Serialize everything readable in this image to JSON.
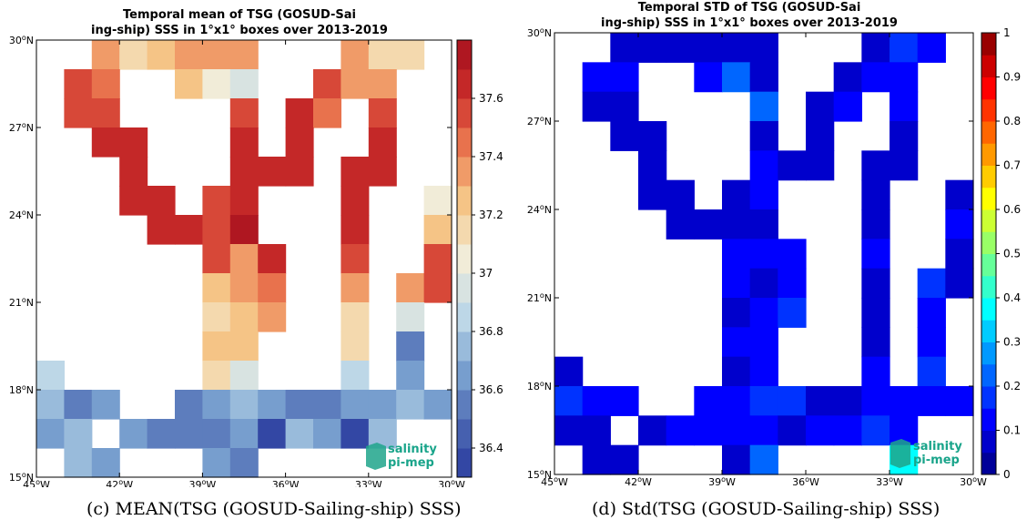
{
  "panels": [
    {
      "title_line1": "Temporal mean of TSG (GOSUD-Sai",
      "title_line2": "ing-ship) SSS in 1°x1° boxes over 2013-2019",
      "caption": "(c) MEAN(TSG (GOSUD-Sailing-ship) SSS)",
      "logo_line1": "salinity",
      "logo_line2": "pi-mep"
    },
    {
      "title_line1": "Temporal STD of TSG (GOSUD-Sai",
      "title_line2": "ing-ship) SSS in 1°x1° boxes over 2013-2019",
      "caption": "(d) Std(TSG (GOSUD-Sailing-ship) SSS)",
      "logo_line1": "salinity",
      "logo_line2": "pi-mep"
    }
  ],
  "chart_data": [
    {
      "type": "heatmap",
      "title": "Temporal mean of TSG (GOSUD-Sailing-ship) SSS in 1°x1° boxes over 2013-2019",
      "x_ticks": [
        "45°W",
        "42°W",
        "39°W",
        "36°W",
        "33°W",
        "30°W"
      ],
      "y_ticks": [
        "15°N",
        "18°N",
        "21°N",
        "24°N",
        "27°N",
        "30°N"
      ],
      "lon_range": [
        -45,
        -30
      ],
      "lat_range": [
        15,
        30
      ],
      "cell_size_deg": 1,
      "colorbar_range": [
        36.3,
        37.8
      ],
      "colorbar_ticks": [
        "36.4",
        "36.6",
        "36.8",
        "37",
        "37.2",
        "37.4",
        "37.6"
      ],
      "colorbar_levels": 15,
      "colormap_stops": [
        "#2a3b9e",
        "#4d69b3",
        "#7ea6d2",
        "#c2dbe9",
        "#f1ecd8",
        "#f6c98a",
        "#ec7d52",
        "#cc2e2b",
        "#a50f1d"
      ],
      "grid_nodata": null,
      "rows_north_to_south": [
        [
          null,
          null,
          37.3,
          37.15,
          37.25,
          37.3,
          37.3,
          37.3,
          null,
          null,
          null,
          37.3,
          37.18,
          37.18,
          null
        ],
        [
          null,
          37.5,
          37.4,
          null,
          null,
          37.2,
          37.05,
          36.98,
          null,
          null,
          37.5,
          37.35,
          37.3,
          null,
          null
        ],
        [
          null,
          37.55,
          37.5,
          null,
          null,
          null,
          null,
          37.55,
          null,
          37.6,
          37.4,
          null,
          37.5,
          null,
          null
        ],
        [
          null,
          null,
          37.6,
          37.6,
          null,
          null,
          null,
          37.65,
          null,
          37.6,
          null,
          null,
          37.6,
          null,
          null
        ],
        [
          null,
          null,
          null,
          37.6,
          null,
          null,
          null,
          37.6,
          37.6,
          37.6,
          null,
          37.6,
          37.6,
          null,
          null
        ],
        [
          null,
          null,
          null,
          37.65,
          37.65,
          null,
          37.55,
          37.6,
          null,
          null,
          null,
          37.6,
          null,
          null,
          37.08
        ],
        [
          null,
          null,
          null,
          null,
          37.6,
          37.6,
          37.55,
          37.75,
          null,
          null,
          null,
          37.6,
          null,
          null,
          37.25
        ],
        [
          null,
          null,
          null,
          null,
          null,
          null,
          37.5,
          37.35,
          37.65,
          null,
          null,
          37.55,
          null,
          null,
          37.55
        ],
        [
          null,
          null,
          null,
          null,
          null,
          null,
          37.25,
          37.35,
          37.45,
          null,
          null,
          37.35,
          null,
          37.35,
          37.5
        ],
        [
          null,
          null,
          null,
          null,
          null,
          null,
          37.15,
          37.25,
          37.35,
          null,
          null,
          37.15,
          null,
          36.95,
          null
        ],
        [
          null,
          null,
          null,
          null,
          null,
          null,
          37.22,
          37.22,
          null,
          null,
          null,
          37.15,
          null,
          36.55,
          null
        ],
        [
          36.85,
          null,
          null,
          null,
          null,
          null,
          37.1,
          36.98,
          null,
          null,
          null,
          36.88,
          null,
          36.6,
          null
        ],
        [
          36.7,
          36.55,
          36.65,
          null,
          null,
          36.55,
          36.65,
          36.75,
          36.6,
          36.5,
          36.5,
          36.6,
          36.65,
          36.7,
          36.65
        ],
        [
          36.65,
          36.7,
          null,
          36.65,
          36.55,
          36.5,
          36.55,
          36.6,
          36.35,
          36.75,
          36.6,
          36.35,
          36.7,
          null,
          null
        ],
        [
          null,
          36.75,
          36.6,
          null,
          null,
          null,
          36.6,
          36.55,
          null,
          null,
          null,
          null,
          null,
          null,
          null
        ]
      ]
    },
    {
      "type": "heatmap",
      "title": "Temporal STD of TSG (GOSUD-Sailing-ship) SSS in 1°x1° boxes over 2013-2019",
      "x_ticks": [
        "45°W",
        "42°W",
        "39°W",
        "36°W",
        "33°W",
        "30°W"
      ],
      "y_ticks": [
        "15°N",
        "18°N",
        "21°N",
        "24°N",
        "27°N",
        "30°N"
      ],
      "lon_range": [
        -45,
        -30
      ],
      "lat_range": [
        15,
        30
      ],
      "cell_size_deg": 1,
      "colorbar_range": [
        0,
        1
      ],
      "colorbar_ticks": [
        "0",
        "0.1",
        "0.2",
        "0.3",
        "0.4",
        "0.5",
        "0.6",
        "0.7",
        "0.8",
        "0.9",
        "1"
      ],
      "colorbar_levels": 20,
      "colormap": "jet",
      "rows_north_to_south": [
        [
          null,
          null,
          0.08,
          0.08,
          0.05,
          0.05,
          0.08,
          0.05,
          null,
          null,
          null,
          0.08,
          0.18,
          0.12,
          null
        ],
        [
          null,
          0.1,
          0.1,
          null,
          null,
          0.1,
          0.2,
          0.05,
          null,
          null,
          0.05,
          0.1,
          0.1,
          null,
          null
        ],
        [
          null,
          0.05,
          0.05,
          null,
          null,
          null,
          null,
          0.2,
          null,
          0.05,
          0.1,
          null,
          0.1,
          null,
          null
        ],
        [
          null,
          null,
          0.05,
          0.05,
          null,
          null,
          null,
          0.05,
          null,
          0.05,
          null,
          null,
          0.05,
          null,
          null
        ],
        [
          null,
          null,
          null,
          0.05,
          null,
          null,
          null,
          0.1,
          0.05,
          0.05,
          null,
          0.05,
          0.05,
          null,
          null
        ],
        [
          null,
          null,
          null,
          0.05,
          0.05,
          null,
          0.05,
          0.1,
          null,
          null,
          null,
          0.05,
          null,
          null,
          0.05
        ],
        [
          null,
          null,
          null,
          null,
          0.05,
          0.05,
          0.05,
          0.05,
          null,
          null,
          null,
          0.05,
          null,
          null,
          0.1
        ],
        [
          null,
          null,
          null,
          null,
          null,
          null,
          0.1,
          0.1,
          0.1,
          null,
          null,
          0.1,
          null,
          null,
          0.05
        ],
        [
          null,
          null,
          null,
          null,
          null,
          null,
          0.1,
          0.05,
          0.1,
          null,
          null,
          0.05,
          null,
          0.15,
          0.05
        ],
        [
          null,
          null,
          null,
          null,
          null,
          null,
          0.05,
          0.1,
          0.15,
          null,
          null,
          0.05,
          null,
          0.1,
          null
        ],
        [
          null,
          null,
          null,
          null,
          null,
          null,
          0.1,
          0.1,
          null,
          null,
          null,
          0.05,
          null,
          0.1,
          null
        ],
        [
          0.05,
          null,
          null,
          null,
          null,
          null,
          0.05,
          0.1,
          null,
          null,
          null,
          0.12,
          null,
          0.18,
          null
        ],
        [
          0.18,
          0.12,
          0.1,
          null,
          null,
          0.1,
          0.1,
          0.15,
          0.15,
          0.05,
          0.05,
          0.1,
          0.1,
          0.1,
          0.1
        ],
        [
          0.05,
          0.05,
          null,
          0.05,
          0.12,
          0.12,
          0.12,
          0.12,
          0.08,
          0.12,
          0.1,
          0.15,
          0.12,
          null,
          null
        ],
        [
          null,
          0.05,
          0.05,
          null,
          null,
          null,
          0.05,
          0.2,
          null,
          null,
          null,
          null,
          0.35,
          null,
          null
        ]
      ]
    }
  ]
}
